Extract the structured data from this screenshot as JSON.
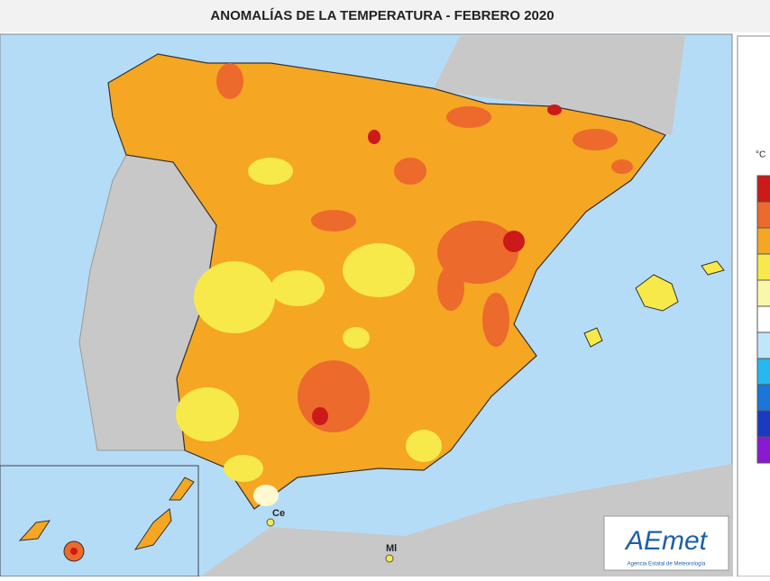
{
  "header": {
    "title": "ANOMALÍAS DE LA TEMPERATURA - FEBRERO 2020"
  },
  "map": {
    "places": [
      "Ce",
      "Ml"
    ],
    "legend_unit": "°C"
  },
  "logo": {
    "name": "AEmet",
    "subtitle": "Agencia Estatal de Meteorología"
  }
}
